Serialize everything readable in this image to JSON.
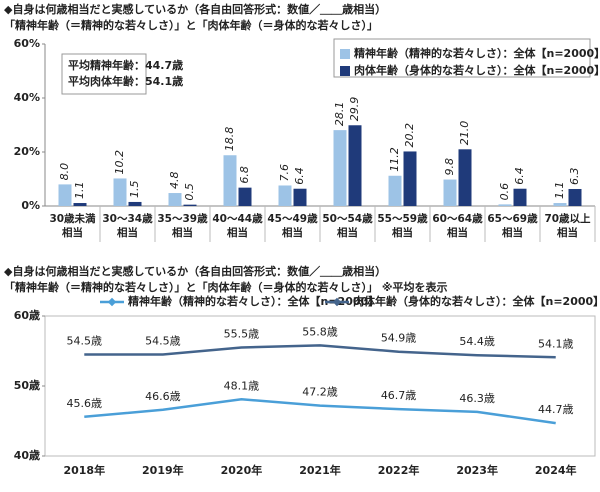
{
  "chart_data": [
    {
      "type": "bar",
      "title": "◆自身は何歳相当だと実感しているか（各自由回答形式：数値／＿＿歳相当）",
      "subtitle": "「精神年齢（＝精神的な若々しさ）」と「肉体年齢（＝身体的な若々しさ）」",
      "categories": [
        "30歳未満\n相当",
        "30～34歳\n相当",
        "35～39歳\n相当",
        "40～44歳\n相当",
        "45～49歳\n相当",
        "50～54歳\n相当",
        "55～59歳\n相当",
        "60～64歳\n相当",
        "65～69歳\n相当",
        "70歳以上\n相当"
      ],
      "series": [
        {
          "name": "精神年齢（精神的な若々しさ）：全体【n=2000】",
          "color": "#9dc3e6",
          "values": [
            8.0,
            10.2,
            4.8,
            18.8,
            7.6,
            28.1,
            11.2,
            9.8,
            0.6,
            1.1
          ],
          "value_labels": [
            "8.0",
            "10.2",
            "4.8",
            "18.8",
            "7.6",
            "28.1",
            "11.2",
            "9.8",
            "0.6",
            "1.1"
          ]
        },
        {
          "name": "肉体年齢（身体的な若々しさ）：全体【n=2000】",
          "color": "#1f3a7a",
          "values": [
            1.1,
            1.5,
            0.5,
            6.8,
            6.4,
            29.9,
            20.2,
            21.0,
            6.4,
            6.3
          ],
          "value_labels": [
            "1.1",
            "1.5",
            "0.5",
            "6.8",
            "6.4",
            "29.9",
            "20.2",
            "21.0",
            "6.4",
            "6.3"
          ]
        }
      ],
      "annotations": [
        "平均精神年齢：44.7歳",
        "平均肉体年齢：54.1歳"
      ],
      "ylim": [
        0,
        60
      ],
      "yticks": [
        {
          "value": 0,
          "label": "0%"
        },
        {
          "value": 20,
          "label": "20%"
        },
        {
          "value": 40,
          "label": "40%"
        },
        {
          "value": 60,
          "label": "60%"
        }
      ],
      "grid": false
    },
    {
      "type": "line",
      "title": "◆自身は何歳相当だと実感しているか（各自由回答形式：数値／＿＿歳相当）",
      "subtitle": "「精神年齢（＝精神的な若々しさ）」と「肉体年齢（＝身体的な若々しさ）」 ※平均を表示",
      "categories": [
        "2018年",
        "2019年",
        "2020年",
        "2021年",
        "2022年",
        "2023年",
        "2024年"
      ],
      "series": [
        {
          "name": "精神年齢（精神的な若々しさ）：全体【n=2000】",
          "color": "#4a9fd8",
          "values": [
            45.6,
            46.6,
            48.1,
            47.2,
            46.7,
            46.3,
            44.7
          ],
          "value_labels": [
            "45.6歳",
            "46.6歳",
            "48.1歳",
            "47.2歳",
            "46.7歳",
            "46.3歳",
            "44.7歳"
          ]
        },
        {
          "name": "肉体年齢（身体的な若々しさ）：全体【n=2000】",
          "color": "#44648c",
          "values": [
            54.5,
            54.5,
            55.5,
            55.8,
            54.9,
            54.4,
            54.1
          ],
          "value_labels": [
            "54.5歳",
            "54.5歳",
            "55.5歳",
            "55.8歳",
            "54.9歳",
            "54.4歳",
            "54.1歳"
          ]
        }
      ],
      "ylim": [
        40,
        60
      ],
      "yticks": [
        {
          "value": 40,
          "label": "40歳"
        },
        {
          "value": 50,
          "label": "50歳"
        },
        {
          "value": 60,
          "label": "60歳"
        }
      ],
      "grid": false
    }
  ]
}
